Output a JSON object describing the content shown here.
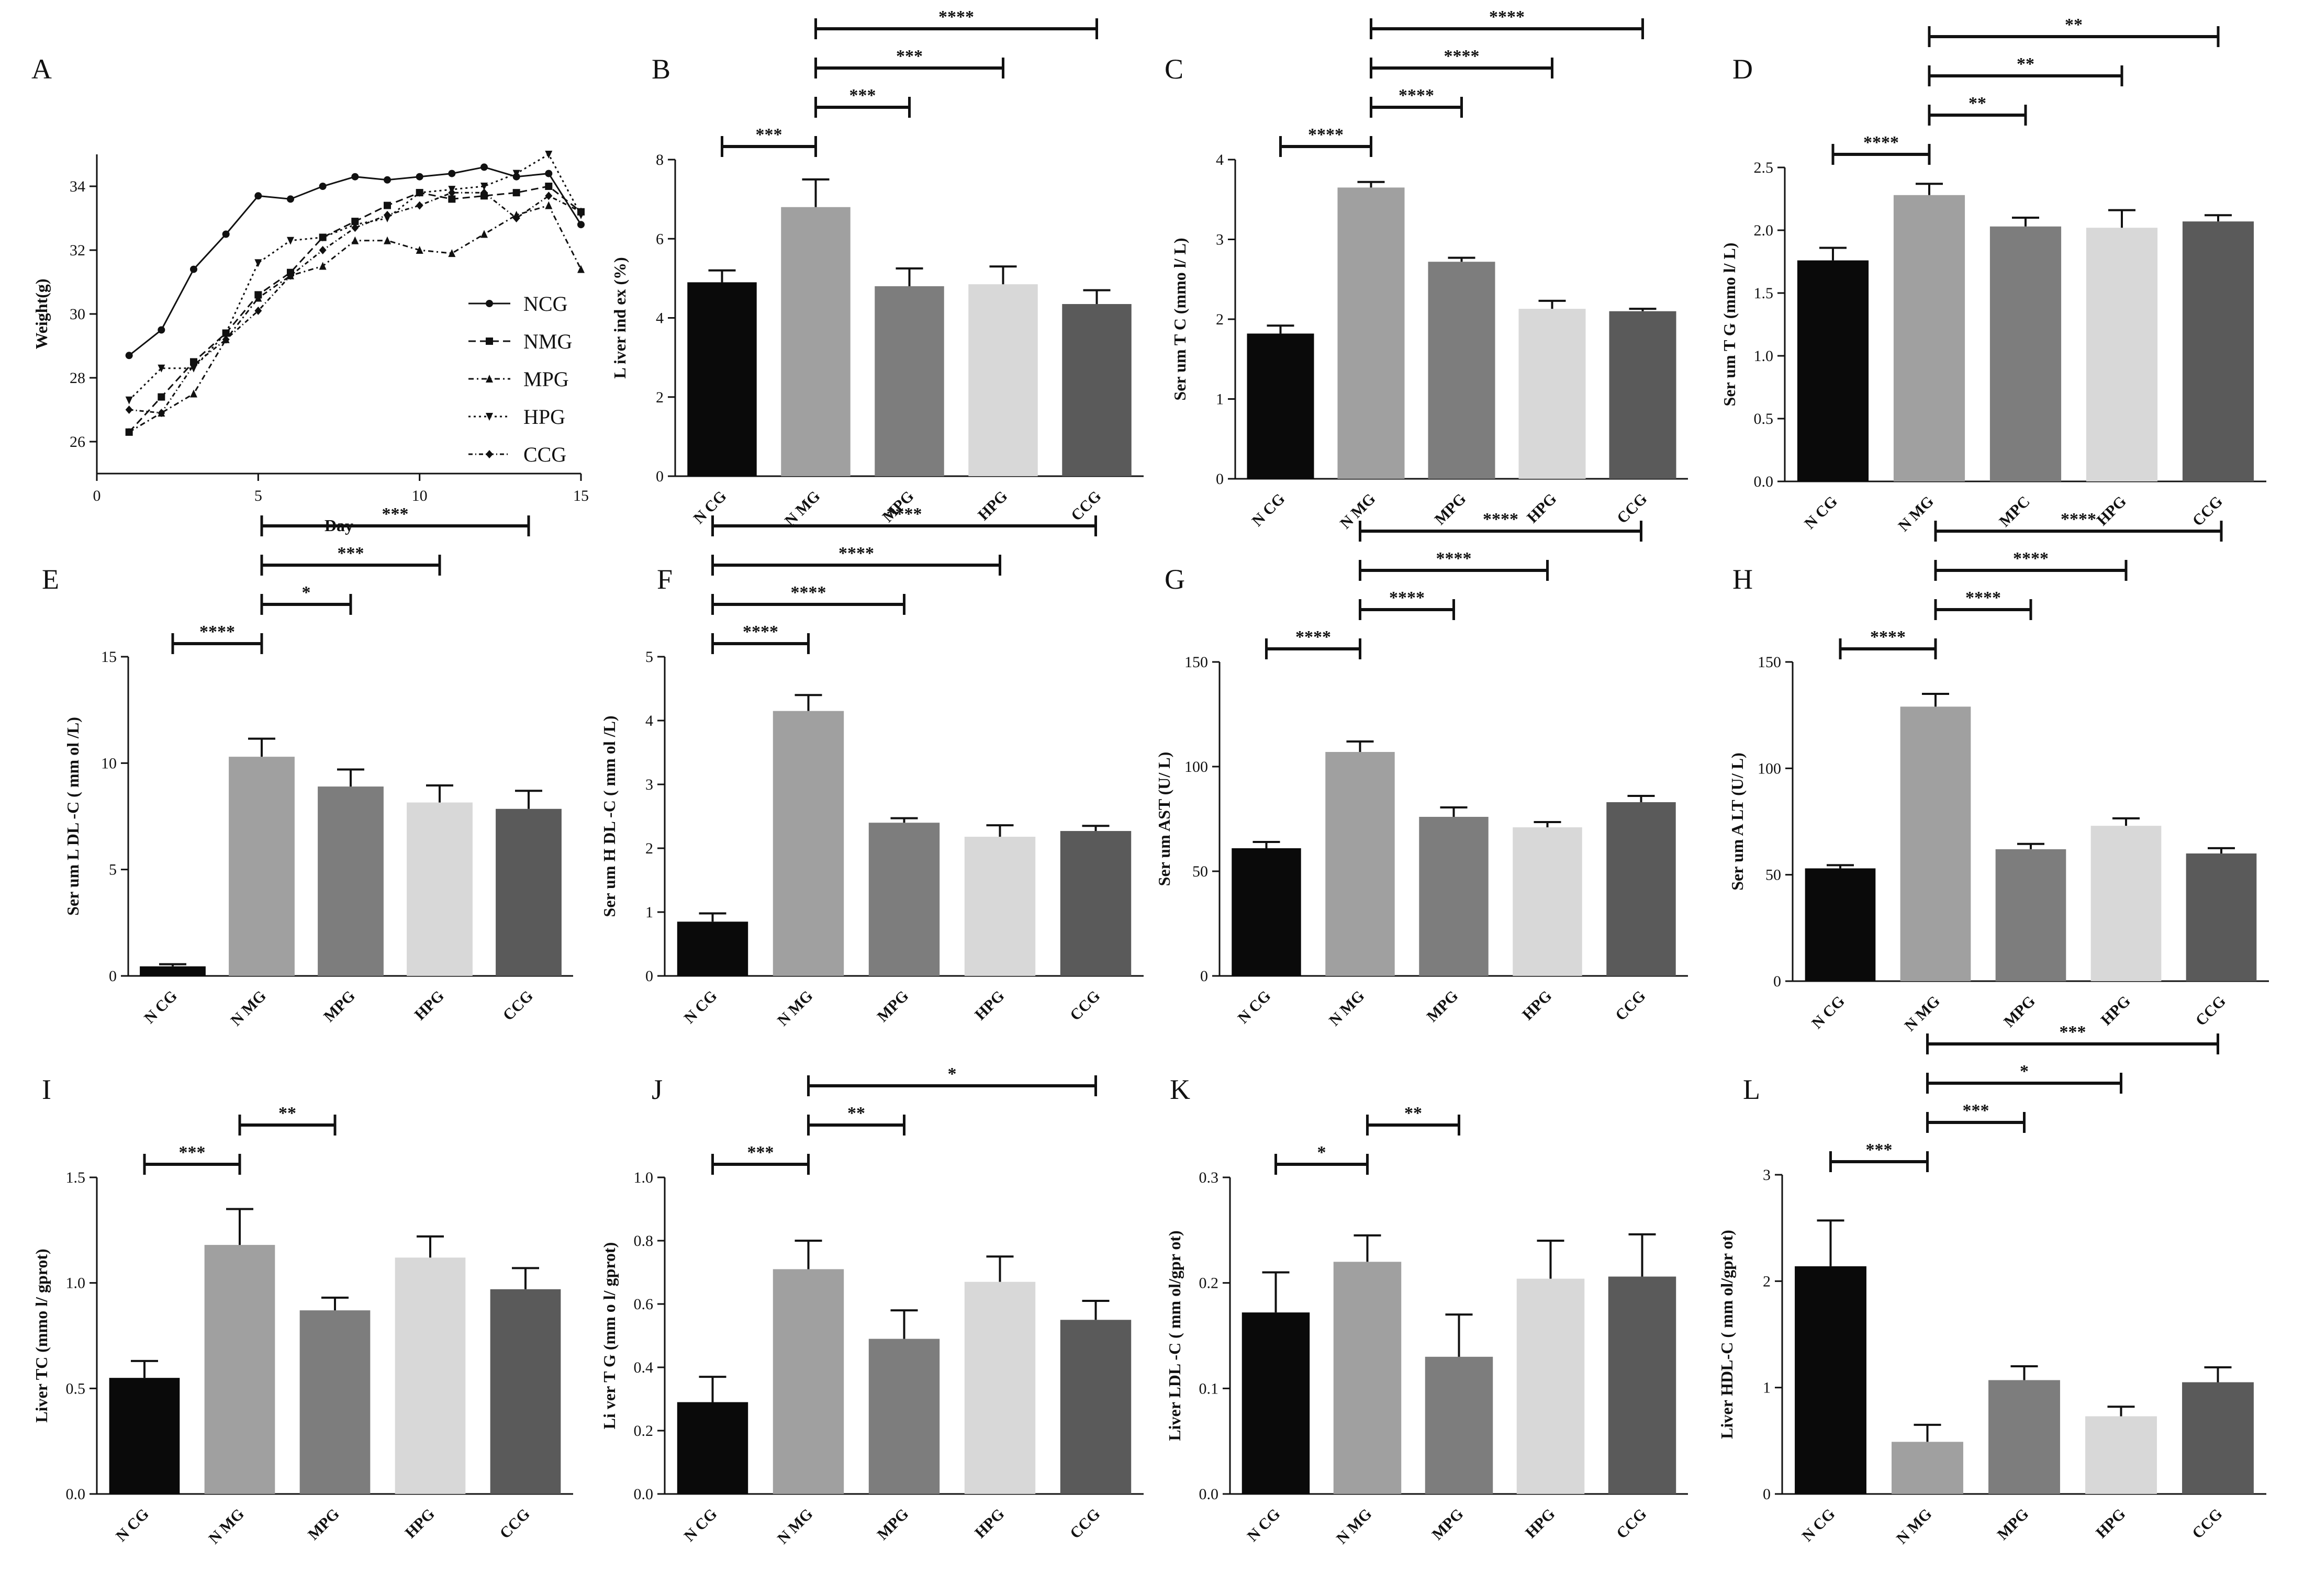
{
  "chart_data": [
    {
      "panel": "A",
      "type": "line",
      "xlabel": "Day",
      "ylabel": "Weight(g)",
      "xlim": [
        0,
        15
      ],
      "ylim": [
        25,
        35
      ],
      "xticks": [
        "0",
        "5",
        "10",
        "15"
      ],
      "yticks": [
        "26",
        "28",
        "30",
        "32",
        "34"
      ],
      "x": [
        1,
        2,
        3,
        4,
        5,
        6,
        7,
        8,
        9,
        10,
        11,
        12,
        13,
        14,
        15
      ],
      "series": [
        {
          "name": "NCG",
          "marker": "circle",
          "dash": "",
          "values": [
            28.7,
            29.5,
            31.4,
            32.5,
            33.7,
            33.6,
            34.0,
            34.3,
            34.2,
            34.3,
            34.4,
            34.6,
            34.3,
            34.4,
            32.8
          ]
        },
        {
          "name": "NMG",
          "marker": "square",
          "dash": "14,8",
          "values": [
            26.3,
            27.4,
            28.5,
            29.4,
            30.6,
            31.3,
            32.4,
            32.9,
            33.4,
            33.8,
            33.6,
            33.7,
            33.8,
            34.0,
            33.2
          ]
        },
        {
          "name": "MPG",
          "marker": "triangle-up",
          "dash": "10,6,3,6",
          "values": [
            26.3,
            26.9,
            27.5,
            29.2,
            30.5,
            31.2,
            31.5,
            32.3,
            32.3,
            32.0,
            31.9,
            32.5,
            33.1,
            33.4,
            31.4
          ]
        },
        {
          "name": "HPG",
          "marker": "triangle-down",
          "dash": "4,6",
          "values": [
            27.3,
            28.3,
            28.3,
            29.4,
            31.6,
            32.3,
            32.4,
            32.8,
            33.0,
            33.8,
            33.9,
            34.0,
            34.4,
            35.0,
            33.1
          ]
        },
        {
          "name": "CCG",
          "marker": "diamond",
          "dash": "8,5,2,5",
          "values": [
            27.0,
            26.9,
            28.4,
            29.2,
            30.1,
            31.2,
            32.0,
            32.7,
            33.1,
            33.4,
            33.8,
            33.8,
            33.0,
            33.7,
            33.2
          ]
        }
      ]
    },
    {
      "panel": "B",
      "type": "bar",
      "ylabel": "L iver ind ex (%)",
      "ylim": [
        0,
        8
      ],
      "yticks": [
        "0",
        "2",
        "4",
        "6",
        "8"
      ],
      "categories": [
        "N CG",
        "N MG",
        "MPG",
        "HPG",
        "CCG"
      ],
      "values": [
        4.9,
        6.8,
        4.8,
        4.85,
        4.35
      ],
      "errors": [
        0.3,
        0.7,
        0.45,
        0.45,
        0.35
      ],
      "colors": [
        "#0a0a0a",
        "#a0a0a0",
        "#7d7d7d",
        "#d8d8d8",
        "#5a5a5a"
      ],
      "significance": [
        {
          "from": 0,
          "to": 1,
          "label": "***"
        },
        {
          "from": 1,
          "to": 2,
          "label": "***"
        },
        {
          "from": 1,
          "to": 3,
          "label": "***"
        },
        {
          "from": 1,
          "to": 4,
          "label": "****"
        }
      ]
    },
    {
      "panel": "C",
      "type": "bar",
      "ylabel": "Ser um T C (mmo l/ L)",
      "ylim": [
        0,
        4
      ],
      "yticks": [
        "0",
        "1",
        "2",
        "3",
        "4"
      ],
      "categories": [
        "N CG",
        "N MG",
        "MPG",
        "HPG",
        "CCG"
      ],
      "values": [
        1.82,
        3.65,
        2.72,
        2.13,
        2.1
      ],
      "errors": [
        0.1,
        0.07,
        0.05,
        0.1,
        0.03
      ],
      "colors": [
        "#0a0a0a",
        "#a0a0a0",
        "#7d7d7d",
        "#d8d8d8",
        "#5a5a5a"
      ],
      "significance": [
        {
          "from": 0,
          "to": 1,
          "label": "****"
        },
        {
          "from": 1,
          "to": 2,
          "label": "****"
        },
        {
          "from": 1,
          "to": 3,
          "label": "****"
        },
        {
          "from": 1,
          "to": 4,
          "label": "****"
        }
      ]
    },
    {
      "panel": "D",
      "type": "bar",
      "ylabel": "Ser um T G (mmo l/ L)",
      "ylim": [
        0,
        2.5
      ],
      "yticks": [
        "0.0",
        "0.5",
        "1.0",
        "1.5",
        "2.0",
        "2.5"
      ],
      "categories": [
        "N CG",
        "N MG",
        "MPC",
        "HPG",
        "CCG"
      ],
      "values": [
        1.76,
        2.28,
        2.03,
        2.02,
        2.07
      ],
      "errors": [
        0.1,
        0.09,
        0.07,
        0.14,
        0.05
      ],
      "colors": [
        "#0a0a0a",
        "#a0a0a0",
        "#7d7d7d",
        "#d8d8d8",
        "#5a5a5a"
      ],
      "significance": [
        {
          "from": 0,
          "to": 1,
          "label": "****"
        },
        {
          "from": 1,
          "to": 2,
          "label": "**"
        },
        {
          "from": 1,
          "to": 3,
          "label": "**"
        },
        {
          "from": 1,
          "to": 4,
          "label": "**"
        }
      ]
    },
    {
      "panel": "E",
      "type": "bar",
      "ylabel": "Ser um L DL -C ( mm ol /L)",
      "ylim": [
        0,
        15
      ],
      "yticks": [
        "0",
        "5",
        "10",
        "15"
      ],
      "categories": [
        "N CG",
        "N MG",
        "MPG",
        "HPG",
        "CCG"
      ],
      "values": [
        0.45,
        10.3,
        8.9,
        8.15,
        7.85
      ],
      "errors": [
        0.1,
        0.85,
        0.8,
        0.8,
        0.85
      ],
      "colors": [
        "#0a0a0a",
        "#a0a0a0",
        "#7d7d7d",
        "#d8d8d8",
        "#5a5a5a"
      ],
      "significance": [
        {
          "from": 0,
          "to": 1,
          "label": "****"
        },
        {
          "from": 1,
          "to": 2,
          "label": "*"
        },
        {
          "from": 1,
          "to": 3,
          "label": "***"
        },
        {
          "from": 1,
          "to": 4,
          "label": "***"
        }
      ]
    },
    {
      "panel": "F",
      "type": "bar",
      "ylabel": "Ser um H DL -C ( mm ol /L)",
      "ylim": [
        0,
        5
      ],
      "yticks": [
        "0",
        "1",
        "2",
        "3",
        "4",
        "5"
      ],
      "categories": [
        "N CG",
        "N MG",
        "MPG",
        "HPG",
        "CCG"
      ],
      "values": [
        0.85,
        4.15,
        2.4,
        2.18,
        2.27
      ],
      "errors": [
        0.13,
        0.25,
        0.07,
        0.18,
        0.08
      ],
      "colors": [
        "#0a0a0a",
        "#a0a0a0",
        "#7d7d7d",
        "#d8d8d8",
        "#5a5a5a"
      ],
      "significance": [
        {
          "from": 0,
          "to": 1,
          "label": "****"
        },
        {
          "from": 0,
          "to": 2,
          "label": "****"
        },
        {
          "from": 0,
          "to": 3,
          "label": "****"
        },
        {
          "from": 0,
          "to": 4,
          "label": "****"
        }
      ]
    },
    {
      "panel": "G",
      "type": "bar",
      "ylabel": "Ser um AST (U/ L)",
      "ylim": [
        0,
        150
      ],
      "yticks": [
        "0",
        "50",
        "100",
        "150"
      ],
      "categories": [
        "N CG",
        "N MG",
        "MPG",
        "HPG",
        "CCG"
      ],
      "values": [
        61,
        107,
        76,
        71,
        83
      ],
      "errors": [
        3,
        5,
        4.5,
        2.5,
        3
      ],
      "colors": [
        "#0a0a0a",
        "#a0a0a0",
        "#7d7d7d",
        "#d8d8d8",
        "#5a5a5a"
      ],
      "significance": [
        {
          "from": 0,
          "to": 1,
          "label": "****"
        },
        {
          "from": 1,
          "to": 2,
          "label": "****"
        },
        {
          "from": 1,
          "to": 3,
          "label": "****"
        },
        {
          "from": 1,
          "to": 4,
          "label": "****"
        }
      ]
    },
    {
      "panel": "H",
      "type": "bar",
      "ylabel": "Ser um A LT (U/ L)",
      "ylim": [
        0,
        150
      ],
      "yticks": [
        "0",
        "50",
        "100",
        "150"
      ],
      "categories": [
        "N CG",
        "N MG",
        "MPG",
        "HPG",
        "CCG"
      ],
      "values": [
        53,
        129,
        62,
        73,
        60
      ],
      "errors": [
        1.5,
        6,
        2.5,
        3.5,
        2.5
      ],
      "colors": [
        "#0a0a0a",
        "#a0a0a0",
        "#7d7d7d",
        "#d8d8d8",
        "#5a5a5a"
      ],
      "significance": [
        {
          "from": 0,
          "to": 1,
          "label": "****"
        },
        {
          "from": 1,
          "to": 2,
          "label": "****"
        },
        {
          "from": 1,
          "to": 3,
          "label": "****"
        },
        {
          "from": 1,
          "to": 4,
          "label": "****"
        }
      ]
    },
    {
      "panel": "I",
      "type": "bar",
      "ylabel": "Liver TC (mmo l/ gprot)",
      "ylim": [
        0,
        1.5
      ],
      "yticks": [
        "0.0",
        "0.5",
        "1.0",
        "1.5"
      ],
      "categories": [
        "N CG",
        "N MG",
        "MPG",
        "HPG",
        "CCG"
      ],
      "values": [
        0.55,
        1.18,
        0.87,
        1.12,
        0.97
      ],
      "errors": [
        0.08,
        0.17,
        0.06,
        0.1,
        0.1
      ],
      "colors": [
        "#0a0a0a",
        "#a0a0a0",
        "#7d7d7d",
        "#d8d8d8",
        "#5a5a5a"
      ],
      "significance": [
        {
          "from": 0,
          "to": 1,
          "label": "***"
        },
        {
          "from": 1,
          "to": 2,
          "label": "**"
        }
      ]
    },
    {
      "panel": "J",
      "type": "bar",
      "ylabel": "Li ver T G (mm o l/ gprot)",
      "ylim": [
        0,
        1.0
      ],
      "yticks": [
        "0.0",
        "0.2",
        "0.4",
        "0.6",
        "0.8",
        "1.0"
      ],
      "categories": [
        "N CG",
        "N MG",
        "MPG",
        "HPG",
        "CCG"
      ],
      "values": [
        0.29,
        0.71,
        0.49,
        0.67,
        0.55
      ],
      "errors": [
        0.08,
        0.09,
        0.09,
        0.08,
        0.06
      ],
      "colors": [
        "#0a0a0a",
        "#a0a0a0",
        "#7d7d7d",
        "#d8d8d8",
        "#5a5a5a"
      ],
      "significance": [
        {
          "from": 0,
          "to": 1,
          "label": "***"
        },
        {
          "from": 1,
          "to": 2,
          "label": "**"
        },
        {
          "from": 1,
          "to": 4,
          "label": "*"
        }
      ]
    },
    {
      "panel": "K",
      "type": "bar",
      "ylabel": "Liver LDL -C ( mm ol/gpr ot)",
      "ylim": [
        0,
        0.3
      ],
      "yticks": [
        "0.0",
        "0.1",
        "0.2",
        "0.3"
      ],
      "categories": [
        "N CG",
        "N MG",
        "MPG",
        "HPG",
        "CCG"
      ],
      "values": [
        0.172,
        0.22,
        0.13,
        0.204,
        0.206
      ],
      "errors": [
        0.038,
        0.025,
        0.04,
        0.036,
        0.04
      ],
      "colors": [
        "#0a0a0a",
        "#a0a0a0",
        "#7d7d7d",
        "#d8d8d8",
        "#5a5a5a"
      ],
      "significance": [
        {
          "from": 0,
          "to": 1,
          "label": "*"
        },
        {
          "from": 1,
          "to": 2,
          "label": "**"
        }
      ]
    },
    {
      "panel": "L",
      "type": "bar",
      "ylabel": "Liver HDL-C ( mm ol/gpr ot)",
      "ylim": [
        0,
        3
      ],
      "yticks": [
        "0",
        "1",
        "2",
        "3"
      ],
      "categories": [
        "N CG",
        "N MG",
        "MPG",
        "HPG",
        "CCG"
      ],
      "values": [
        2.14,
        0.49,
        1.07,
        0.73,
        1.05
      ],
      "errors": [
        0.43,
        0.16,
        0.13,
        0.09,
        0.14
      ],
      "colors": [
        "#0a0a0a",
        "#a0a0a0",
        "#7d7d7d",
        "#d8d8d8",
        "#5a5a5a"
      ],
      "significance": [
        {
          "from": 0,
          "to": 1,
          "label": "***"
        },
        {
          "from": 1,
          "to": 2,
          "label": "***"
        },
        {
          "from": 1,
          "to": 3,
          "label": "*"
        },
        {
          "from": 1,
          "to": 4,
          "label": "***"
        }
      ]
    }
  ]
}
